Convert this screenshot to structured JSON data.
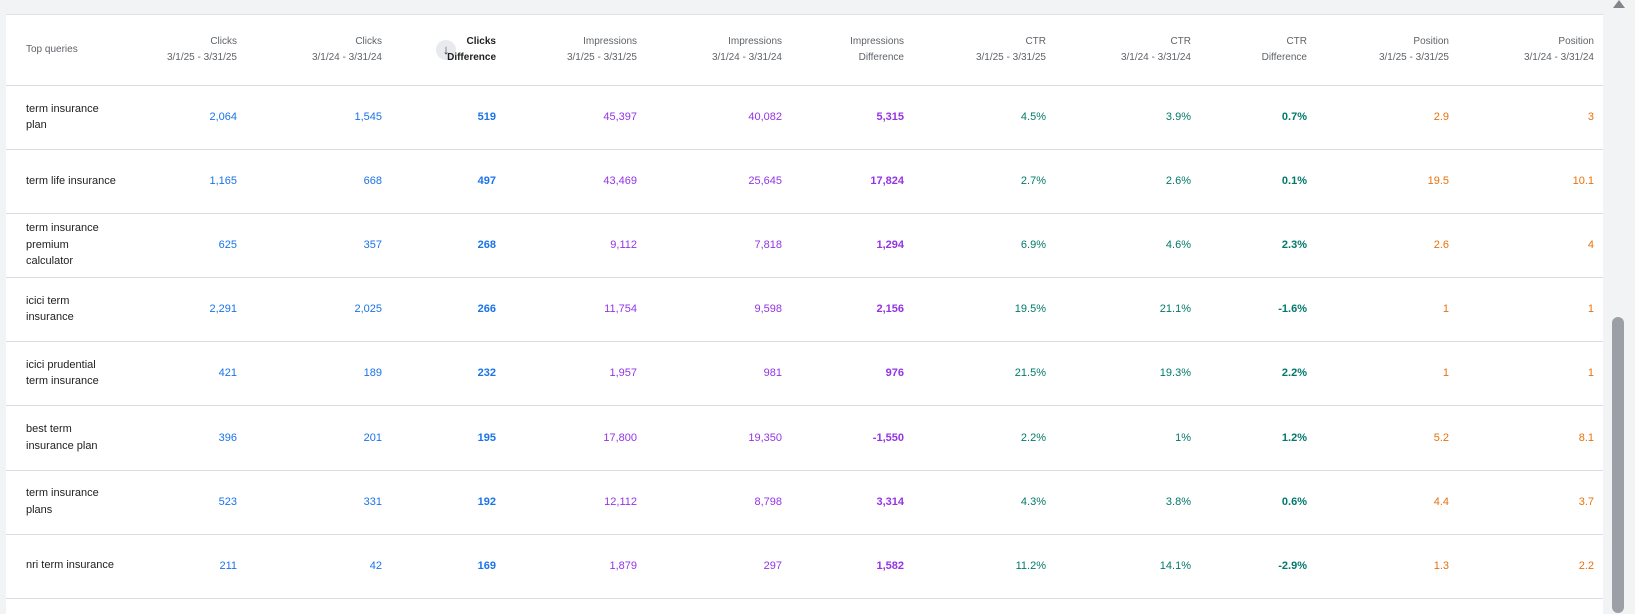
{
  "header": {
    "query_label": "Top queries",
    "columns": [
      {
        "title": "Clicks",
        "sub": "3/1/25 - 3/31/25"
      },
      {
        "title": "Clicks",
        "sub": "3/1/24 - 3/31/24"
      },
      {
        "title": "Clicks",
        "sub": "Difference"
      },
      {
        "title": "Impressions",
        "sub": "3/1/25 - 3/31/25"
      },
      {
        "title": "Impressions",
        "sub": "3/1/24 - 3/31/24"
      },
      {
        "title": "Impressions",
        "sub": "Difference"
      },
      {
        "title": "CTR",
        "sub": "3/1/25 - 3/31/25"
      },
      {
        "title": "CTR",
        "sub": "3/1/24 - 3/31/24"
      },
      {
        "title": "CTR",
        "sub": "Difference"
      },
      {
        "title": "Position",
        "sub": "3/1/25 - 3/31/25"
      },
      {
        "title": "Position",
        "sub": "3/1/24 - 3/31/24"
      }
    ],
    "sort_icon": "arrow-down-icon"
  },
  "rows": [
    {
      "query": "term insurance plan",
      "c1": "2,064",
      "c2": "1,545",
      "cd": "519",
      "i1": "45,397",
      "i2": "40,082",
      "id": "5,315",
      "t1": "4.5%",
      "t2": "3.9%",
      "td": "0.7%",
      "p1": "2.9",
      "p2": "3"
    },
    {
      "query": "term life insurance",
      "c1": "1,165",
      "c2": "668",
      "cd": "497",
      "i1": "43,469",
      "i2": "25,645",
      "id": "17,824",
      "t1": "2.7%",
      "t2": "2.6%",
      "td": "0.1%",
      "p1": "19.5",
      "p2": "10.1"
    },
    {
      "query": "term insurance premium calculator",
      "c1": "625",
      "c2": "357",
      "cd": "268",
      "i1": "9,112",
      "i2": "7,818",
      "id": "1,294",
      "t1": "6.9%",
      "t2": "4.6%",
      "td": "2.3%",
      "p1": "2.6",
      "p2": "4"
    },
    {
      "query": "icici term insurance",
      "c1": "2,291",
      "c2": "2,025",
      "cd": "266",
      "i1": "11,754",
      "i2": "9,598",
      "id": "2,156",
      "t1": "19.5%",
      "t2": "21.1%",
      "td": "-1.6%",
      "p1": "1",
      "p2": "1"
    },
    {
      "query": "icici prudential term insurance",
      "c1": "421",
      "c2": "189",
      "cd": "232",
      "i1": "1,957",
      "i2": "981",
      "id": "976",
      "t1": "21.5%",
      "t2": "19.3%",
      "td": "2.2%",
      "p1": "1",
      "p2": "1"
    },
    {
      "query": "best term insurance plan",
      "c1": "396",
      "c2": "201",
      "cd": "195",
      "i1": "17,800",
      "i2": "19,350",
      "id": "-1,550",
      "t1": "2.2%",
      "t2": "1%",
      "td": "1.2%",
      "p1": "5.2",
      "p2": "8.1"
    },
    {
      "query": "term insurance plans",
      "c1": "523",
      "c2": "331",
      "cd": "192",
      "i1": "12,112",
      "i2": "8,798",
      "id": "3,314",
      "t1": "4.3%",
      "t2": "3.8%",
      "td": "0.6%",
      "p1": "4.4",
      "p2": "3.7"
    },
    {
      "query": "nri term insurance",
      "c1": "211",
      "c2": "42",
      "cd": "169",
      "i1": "1,879",
      "i2": "297",
      "id": "1,582",
      "t1": "11.2%",
      "t2": "14.1%",
      "td": "-2.9%",
      "p1": "1.3",
      "p2": "2.2"
    }
  ],
  "colors": {
    "clicks": "#1a73e8",
    "impressions": "#9334e6",
    "ctr": "#00796b",
    "position": "#e8710a"
  }
}
